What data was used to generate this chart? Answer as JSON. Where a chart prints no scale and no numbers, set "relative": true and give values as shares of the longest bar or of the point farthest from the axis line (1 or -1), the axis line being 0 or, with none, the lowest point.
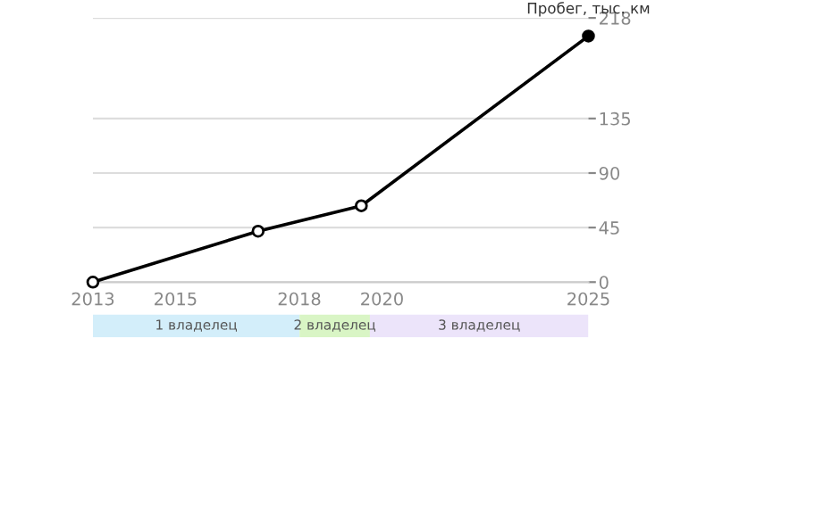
{
  "chart_data": [
    {
      "type": "line",
      "ylabel": "Пробег, тыс. км",
      "x": [
        2013,
        2017,
        2019.5,
        2025
      ],
      "series": [
        {
          "color": "#000000",
          "values": [
            0,
            42,
            63,
            203
          ],
          "colors": [
            "#ffffff",
            "#ffffff",
            "#ffffff",
            "#000000"
          ]
        }
      ],
      "xlim": [
        2013,
        2025
      ],
      "xticks": [
        2013,
        2015,
        2018,
        2020,
        2025
      ],
      "ylim": [
        0,
        218
      ],
      "yticks": [
        0,
        45,
        90,
        135,
        218
      ],
      "grid": "y",
      "marker": "circle",
      "line_style": "solid"
    },
    {
      "type": "bar",
      "orientation": "horizontal",
      "stacked": true,
      "relative": true,
      "categories": [
        null
      ],
      "tick_labels": false,
      "series": [
        {
          "name": "1 владелец",
          "color": "#d3eefa",
          "values": [
            0.417
          ]
        },
        {
          "name": "2 владелец",
          "color": "#d9f5c5",
          "values": [
            0.142
          ]
        },
        {
          "name": "3 владелец",
          "color": "#ece4fa",
          "values": [
            0.441
          ]
        }
      ]
    }
  ]
}
